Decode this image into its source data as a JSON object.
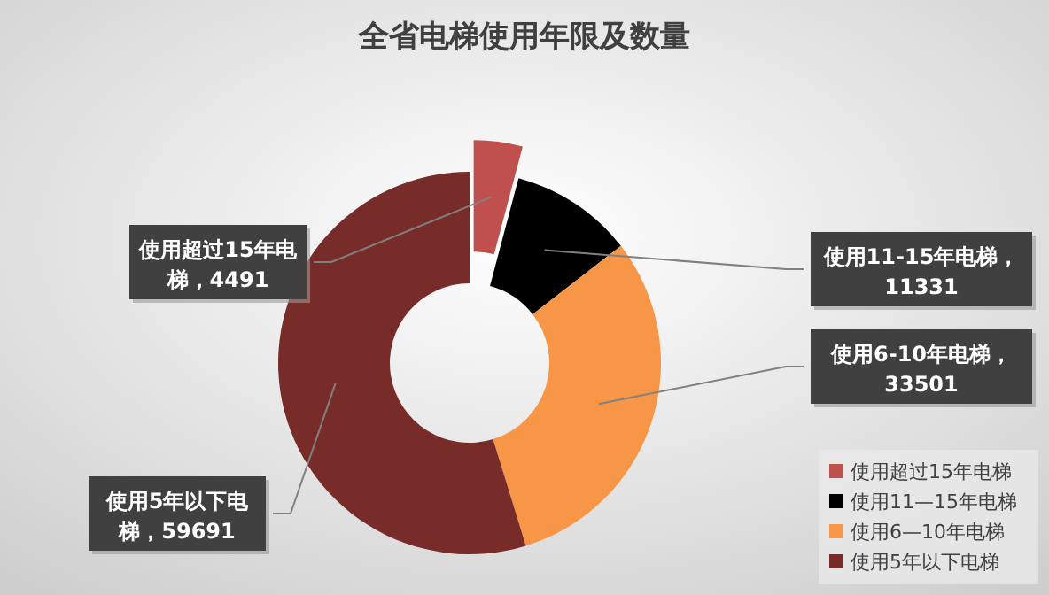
{
  "chart_data": {
    "type": "donut",
    "title": "全省电梯使用年限及数量",
    "categories": [
      "使用超过15年电梯",
      "使用11—15年电梯",
      "使用6—10年电梯",
      "使用5年以下电梯"
    ],
    "values": [
      4491,
      11331,
      33501,
      59691
    ],
    "colors": [
      "#c0504d",
      "#000000",
      "#f79646",
      "#772c2a"
    ],
    "value_labels": [
      "使用超过15年电梯，4491",
      "使用11-15年电梯，11331",
      "使用6-10年电梯，33501",
      "使用5年以下电梯，59691"
    ],
    "legend": "bottom right"
  }
}
